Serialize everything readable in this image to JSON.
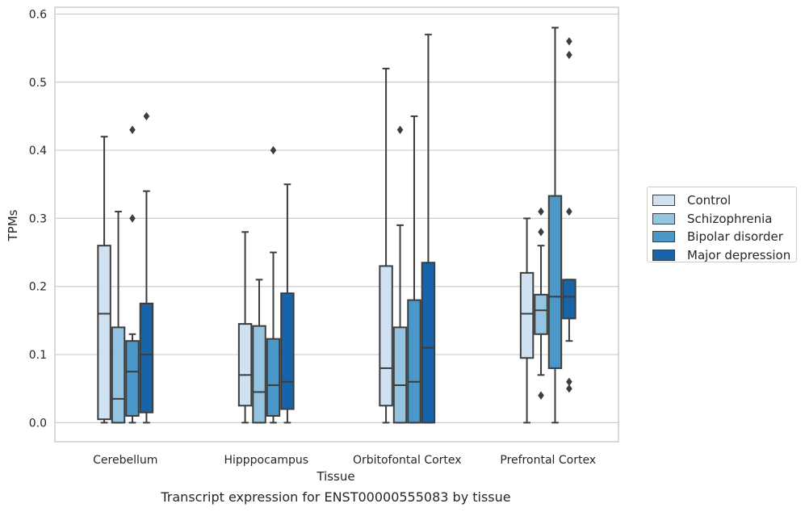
{
  "caption": "Transcript expression for ENST00000555083 by tissue",
  "chart_data": {
    "type": "boxplot",
    "xlabel": "Tissue",
    "ylabel": "TPMs",
    "ylim": [
      -0.028,
      0.61
    ],
    "yticks": [
      0.0,
      0.1,
      0.2,
      0.3,
      0.4,
      0.5,
      0.6
    ],
    "ytick_labels": [
      "0.0",
      "0.1",
      "0.2",
      "0.3",
      "0.4",
      "0.5",
      "0.6"
    ],
    "grid": "horizontal",
    "legend_position": "right",
    "categories": [
      "Cerebellum",
      "Hipppocampus",
      "Orbitofontal Cortex",
      "Prefrontal Cortex"
    ],
    "series": [
      {
        "name": "Control",
        "color": "#d0e1f2",
        "boxes": [
          {
            "whisker_low": 0.0,
            "q1": 0.005,
            "median": 0.16,
            "q3": 0.26,
            "whisker_high": 0.42,
            "outliers": []
          },
          {
            "whisker_low": 0.0,
            "q1": 0.025,
            "median": 0.07,
            "q3": 0.145,
            "whisker_high": 0.28,
            "outliers": []
          },
          {
            "whisker_low": 0.0,
            "q1": 0.025,
            "median": 0.08,
            "q3": 0.23,
            "whisker_high": 0.52,
            "outliers": []
          },
          {
            "whisker_low": 0.0,
            "q1": 0.095,
            "median": 0.16,
            "q3": 0.22,
            "whisker_high": 0.3,
            "outliers": []
          }
        ]
      },
      {
        "name": "Schizophrenia",
        "color": "#94c4df",
        "boxes": [
          {
            "whisker_low": 0.0,
            "q1": 0.0,
            "median": 0.035,
            "q3": 0.14,
            "whisker_high": 0.31,
            "outliers": []
          },
          {
            "whisker_low": 0.0,
            "q1": 0.0,
            "median": 0.045,
            "q3": 0.142,
            "whisker_high": 0.21,
            "outliers": []
          },
          {
            "whisker_low": 0.0,
            "q1": 0.0,
            "median": 0.055,
            "q3": 0.14,
            "whisker_high": 0.29,
            "outliers": [
              0.43
            ]
          },
          {
            "whisker_low": 0.07,
            "q1": 0.13,
            "median": 0.165,
            "q3": 0.188,
            "whisker_high": 0.26,
            "outliers": [
              0.04,
              0.28,
              0.31
            ]
          }
        ]
      },
      {
        "name": "Bipolar disorder",
        "color": "#4a98c9",
        "boxes": [
          {
            "whisker_low": 0.0,
            "q1": 0.01,
            "median": 0.075,
            "q3": 0.12,
            "whisker_high": 0.13,
            "outliers": [
              0.3,
              0.43
            ]
          },
          {
            "whisker_low": 0.0,
            "q1": 0.01,
            "median": 0.055,
            "q3": 0.123,
            "whisker_high": 0.25,
            "outliers": [
              0.4
            ]
          },
          {
            "whisker_low": 0.0,
            "q1": 0.0,
            "median": 0.06,
            "q3": 0.18,
            "whisker_high": 0.45,
            "outliers": []
          },
          {
            "whisker_low": 0.0,
            "q1": 0.08,
            "median": 0.185,
            "q3": 0.333,
            "whisker_high": 0.58,
            "outliers": []
          }
        ]
      },
      {
        "name": "Major depression",
        "color": "#1764ab",
        "boxes": [
          {
            "whisker_low": 0.0,
            "q1": 0.015,
            "median": 0.1,
            "q3": 0.175,
            "whisker_high": 0.34,
            "outliers": [
              0.45
            ]
          },
          {
            "whisker_low": 0.0,
            "q1": 0.02,
            "median": 0.06,
            "q3": 0.19,
            "whisker_high": 0.35,
            "outliers": []
          },
          {
            "whisker_low": 0.0,
            "q1": 0.0,
            "median": 0.11,
            "q3": 0.235,
            "whisker_high": 0.57,
            "outliers": []
          },
          {
            "whisker_low": 0.12,
            "q1": 0.153,
            "median": 0.185,
            "q3": 0.21,
            "whisker_high": 0.21,
            "outliers": [
              0.05,
              0.06,
              0.31,
              0.54,
              0.56
            ]
          }
        ]
      }
    ]
  }
}
